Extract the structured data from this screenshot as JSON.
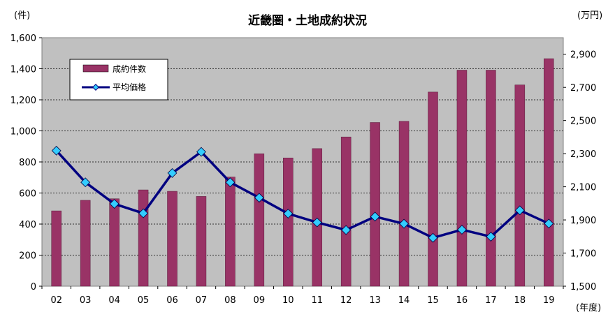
{
  "chart_data": {
    "type": "bar",
    "title": "近畿圏・土地成約状況",
    "y_left_unit": "(件)",
    "y_right_unit": "(万円)",
    "x_unit": "(年度)",
    "categories": [
      "02",
      "03",
      "04",
      "05",
      "06",
      "07",
      "08",
      "09",
      "10",
      "11",
      "12",
      "13",
      "14",
      "15",
      "16",
      "17",
      "18",
      "19"
    ],
    "ylim_left": [
      0,
      1600
    ],
    "yticks_left": [
      "0",
      "200",
      "400",
      "600",
      "800",
      "1,000",
      "1,200",
      "1,400",
      "1,600"
    ],
    "ylim_right": [
      1500,
      3000
    ],
    "yticks_right": [
      "1,500",
      "1,700",
      "1,900",
      "2,100",
      "2,300",
      "2,500",
      "2,700",
      "2,900"
    ],
    "series": [
      {
        "name": "成約件数",
        "type": "bar",
        "axis": "left",
        "color": "#993366",
        "values": [
          485,
          553,
          563,
          620,
          611,
          578,
          703,
          853,
          826,
          886,
          961,
          1054,
          1062,
          1250,
          1391,
          1391,
          1296,
          1465
        ]
      },
      {
        "name": "平均価格",
        "type": "line",
        "axis": "right",
        "color": "#000080",
        "marker_color": "#33ccff",
        "values": [
          2318,
          2127,
          1997,
          1940,
          2183,
          2311,
          2127,
          2034,
          1938,
          1885,
          1839,
          1920,
          1877,
          1792,
          1841,
          1799,
          1958,
          1878
        ]
      }
    ],
    "plot_background": "#c0c0c0",
    "grid": "dashed",
    "legend_position": "top-left"
  }
}
